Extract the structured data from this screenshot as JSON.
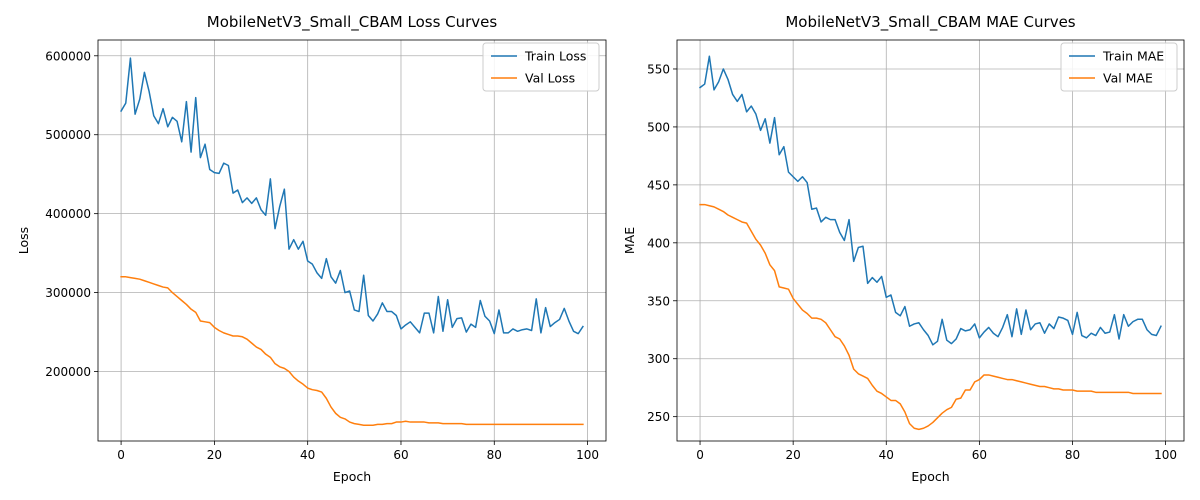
{
  "colors": {
    "train": "#1f77b4",
    "val": "#ff7f0e"
  },
  "chart_data": [
    {
      "type": "line",
      "title": "MobileNetV3_Small_CBAM Loss Curves",
      "xlabel": "Epoch",
      "ylabel": "Loss",
      "xlim": [
        -4.95,
        103.95
      ],
      "ylim": [
        112000,
        620000
      ],
      "xticks": [
        0,
        20,
        40,
        60,
        80,
        100
      ],
      "yticks": [
        200000,
        300000,
        400000,
        500000,
        600000
      ],
      "grid": true,
      "legend": "top-right",
      "series": [
        {
          "name": "Train Loss",
          "color_key": "train",
          "values": [
            530000,
            540000,
            597000,
            526000,
            545000,
            579000,
            555000,
            524000,
            514000,
            533000,
            510000,
            522000,
            517000,
            491000,
            542000,
            478000,
            547000,
            471000,
            488000,
            456000,
            452000,
            451000,
            464000,
            461000,
            426000,
            430000,
            414000,
            420000,
            413000,
            420000,
            405000,
            398000,
            444000,
            381000,
            409000,
            431000,
            355000,
            367000,
            355000,
            365000,
            340000,
            336000,
            325000,
            318000,
            343000,
            320000,
            312000,
            328000,
            300000,
            302000,
            278000,
            276000,
            322000,
            271000,
            264000,
            273000,
            287000,
            276000,
            276000,
            271000,
            254000,
            259000,
            263000,
            256000,
            249000,
            274000,
            274000,
            249000,
            295000,
            251000,
            291000,
            256000,
            267000,
            268000,
            250000,
            260000,
            256000,
            290000,
            270000,
            264000,
            248000,
            278000,
            249000,
            249000,
            254000,
            251000,
            253000,
            254000,
            252000,
            292000,
            249000,
            281000,
            257000,
            262000,
            266000,
            280000,
            264000,
            251000,
            248000,
            257000
          ]
        },
        {
          "name": "Val Loss",
          "color_key": "val",
          "values": [
            320000,
            320000,
            319000,
            318000,
            317000,
            315000,
            313000,
            311000,
            309000,
            307000,
            306000,
            300000,
            295000,
            290000,
            285000,
            279000,
            275000,
            264000,
            263000,
            262000,
            256000,
            252000,
            249000,
            247000,
            245000,
            245000,
            244000,
            241000,
            236000,
            231000,
            228000,
            222000,
            218000,
            210000,
            206000,
            204000,
            200000,
            193000,
            188000,
            184000,
            179000,
            177000,
            176000,
            174000,
            166000,
            155000,
            147000,
            142000,
            140000,
            136000,
            134000,
            133000,
            132000,
            132000,
            132000,
            133000,
            133000,
            134000,
            134000,
            136000,
            136000,
            137000,
            136000,
            136000,
            136000,
            136000,
            135000,
            135000,
            135000,
            134000,
            134000,
            134000,
            134000,
            134000,
            133000,
            133000,
            133000,
            133000,
            133000,
            133000,
            133000,
            133000,
            133000,
            133000,
            133000,
            133000,
            133000,
            133000,
            133000,
            133000,
            133000,
            133000,
            133000,
            133000,
            133000,
            133000,
            133000,
            133000,
            133000,
            133000
          ]
        }
      ]
    },
    {
      "type": "line",
      "title": "MobileNetV3_Small_CBAM MAE Curves",
      "xlabel": "Epoch",
      "ylabel": "MAE",
      "xlim": [
        -4.95,
        103.95
      ],
      "ylim": [
        229,
        575
      ],
      "xticks": [
        0,
        20,
        40,
        60,
        80,
        100
      ],
      "yticks": [
        250,
        300,
        350,
        400,
        450,
        500,
        550
      ],
      "grid": true,
      "legend": "top-right",
      "series": [
        {
          "name": "Train MAE",
          "color_key": "train",
          "values": [
            534,
            537,
            561,
            532,
            539,
            550,
            541,
            528,
            522,
            528,
            513,
            518,
            511,
            497,
            507,
            486,
            508,
            476,
            483,
            461,
            457,
            453,
            457,
            452,
            429,
            430,
            418,
            422,
            420,
            420,
            409,
            402,
            420,
            384,
            396,
            397,
            365,
            370,
            366,
            371,
            353,
            355,
            340,
            337,
            345,
            328,
            330,
            331,
            325,
            320,
            312,
            315,
            334,
            316,
            313,
            317,
            326,
            324,
            325,
            330,
            318,
            323,
            327,
            322,
            319,
            327,
            338,
            319,
            343,
            321,
            342,
            325,
            330,
            331,
            322,
            330,
            326,
            336,
            335,
            333,
            321,
            340,
            320,
            318,
            322,
            320,
            327,
            322,
            323,
            338,
            317,
            338,
            328,
            332,
            334,
            334,
            325,
            321,
            320,
            328
          ]
        },
        {
          "name": "Val MAE",
          "color_key": "val",
          "values": [
            433,
            433,
            432,
            431,
            429,
            427,
            424,
            422,
            420,
            418,
            417,
            410,
            403,
            398,
            391,
            381,
            376,
            362,
            361,
            360,
            352,
            347,
            342,
            339,
            335,
            335,
            334,
            331,
            325,
            319,
            317,
            311,
            303,
            291,
            287,
            285,
            283,
            277,
            272,
            270,
            267,
            264,
            264,
            261,
            254,
            244,
            240,
            239,
            240,
            242,
            245,
            249,
            253,
            256,
            258,
            265,
            266,
            273,
            273,
            280,
            282,
            286,
            286,
            285,
            284,
            283,
            282,
            282,
            281,
            280,
            279,
            278,
            277,
            276,
            276,
            275,
            274,
            274,
            273,
            273,
            273,
            272,
            272,
            272,
            272,
            271,
            271,
            271,
            271,
            271,
            271,
            271,
            271,
            270,
            270,
            270,
            270,
            270,
            270,
            270
          ]
        }
      ]
    }
  ]
}
